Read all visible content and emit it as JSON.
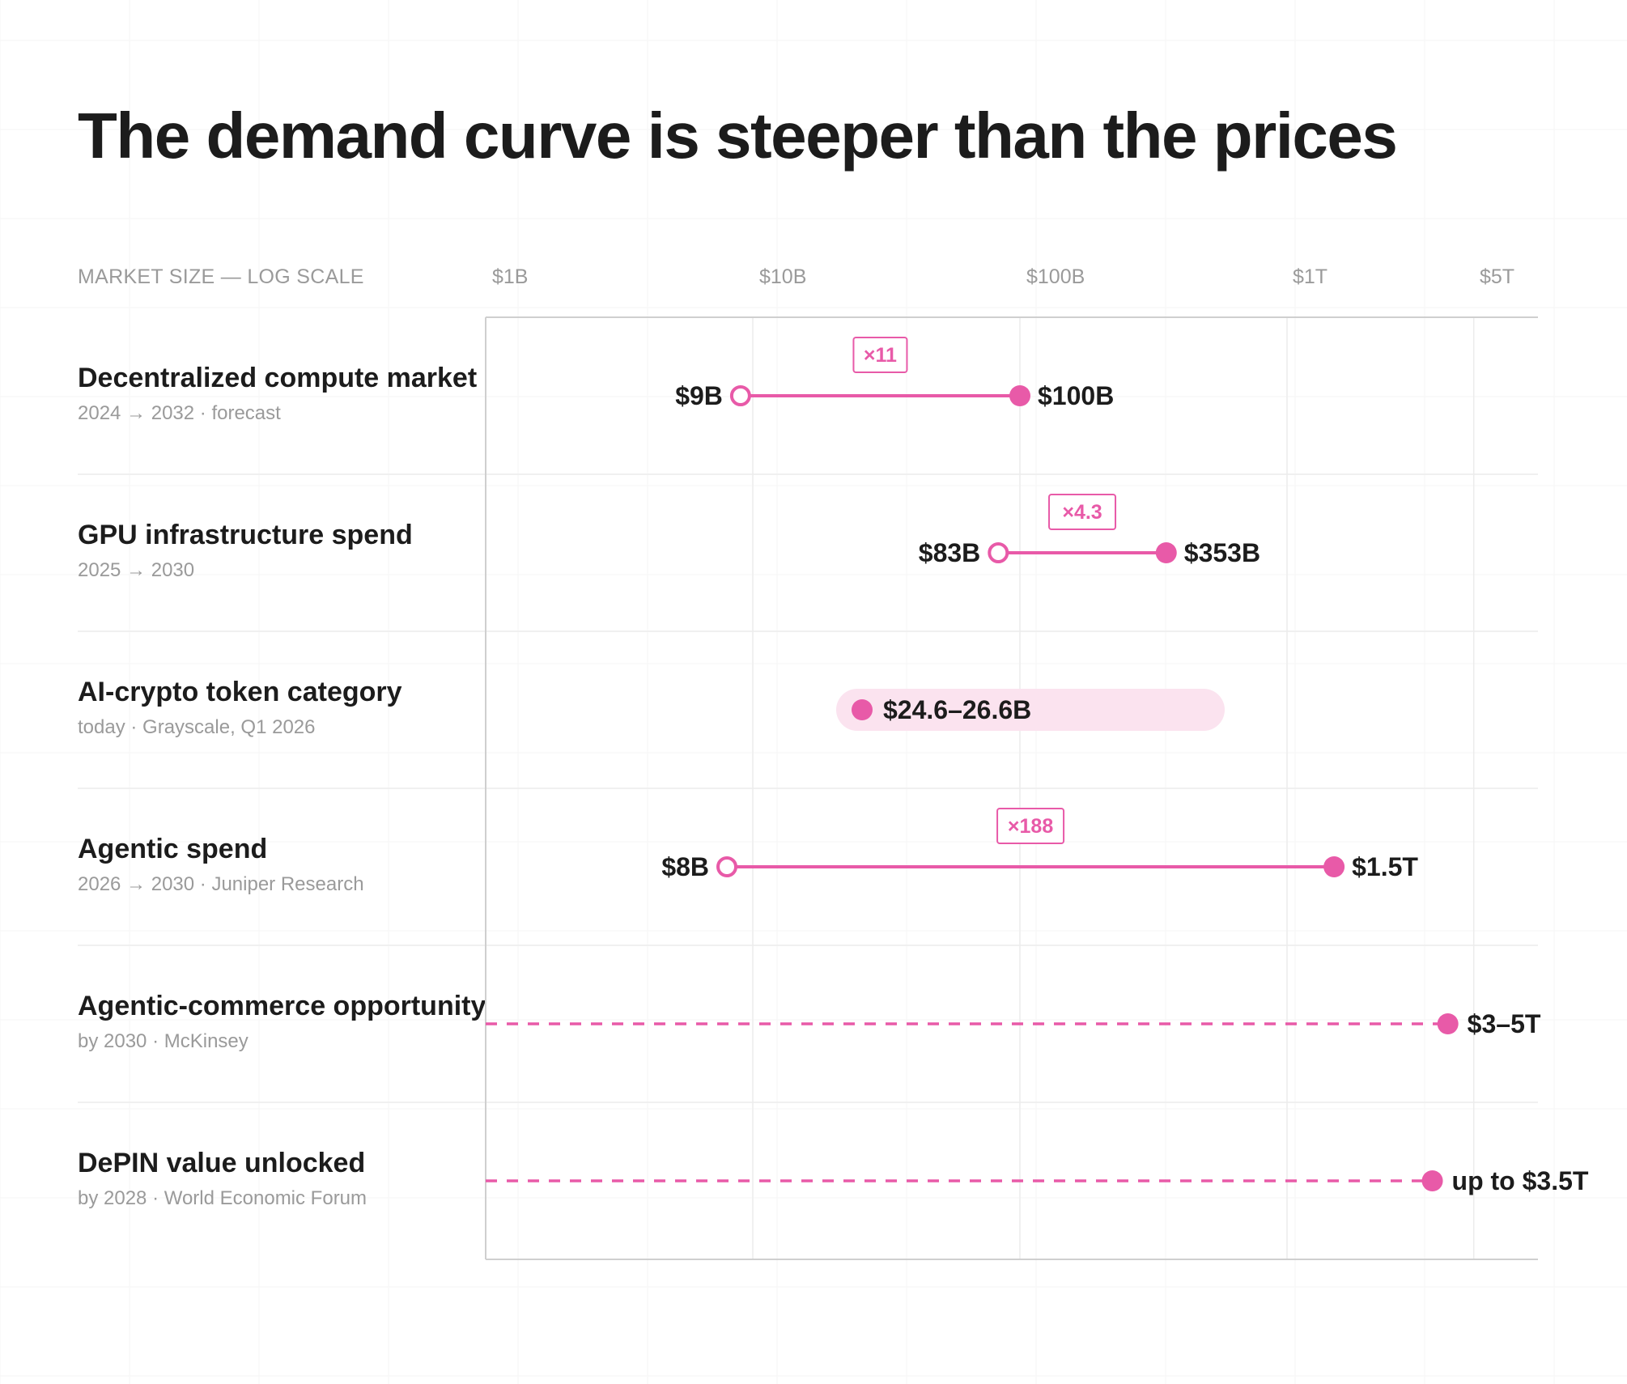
{
  "title": "The demand curve is steeper than the prices",
  "axis_caption": "MARKET SIZE — LOG SCALE",
  "colors": {
    "accent": "#e85aa8",
    "band": "#fbe3ef",
    "text": "#1c1c1c",
    "muted": "#9a9a9a",
    "grid": "#ececec",
    "axis": "#cfcfcf"
  },
  "chart_data": {
    "type": "dumbbell",
    "title": "The demand curve is steeper than the prices",
    "xlabel": "MARKET SIZE — LOG SCALE",
    "x_scale": "log",
    "x_unit": "USD billions",
    "xlim": [
      1,
      5000
    ],
    "ticks": [
      {
        "value": 1,
        "label": "$1B"
      },
      {
        "value": 10,
        "label": "$10B"
      },
      {
        "value": 100,
        "label": "$100B"
      },
      {
        "value": 1000,
        "label": "$1T"
      },
      {
        "value": 5000,
        "label": "$5T"
      }
    ],
    "grid": true,
    "rows": [
      {
        "name": "Decentralized compute market",
        "sub": "2024 → 2032 · forecast",
        "kind": "range",
        "from": 9,
        "from_label": "$9B",
        "to": 100,
        "to_label": "$100B",
        "multiplier": "×11"
      },
      {
        "name": "GPU infrastructure spend",
        "sub": "2025 → 2030",
        "kind": "range",
        "from": 83,
        "from_label": "$83B",
        "to": 353,
        "to_label": "$353B",
        "multiplier": "×4.3"
      },
      {
        "name": "AI-crypto token category",
        "sub": "today · Grayscale, Q1 2026",
        "kind": "band",
        "low": 24.6,
        "high": 26.6,
        "label": "$24.6–26.6B"
      },
      {
        "name": "Agentic spend",
        "sub": "2026 → 2030 · Juniper Research",
        "kind": "range",
        "from": 8,
        "from_label": "$8B",
        "to": 1500,
        "to_label": "$1.5T",
        "multiplier": "×188"
      },
      {
        "name": "Agentic-commerce opportunity",
        "sub": "by 2030 · McKinsey",
        "kind": "target",
        "value": 4000,
        "label": "$3–5T"
      },
      {
        "name": "DePIN value unlocked",
        "sub": "by 2028 · World Economic Forum",
        "kind": "target",
        "value": 3500,
        "label": "up to $3.5T"
      }
    ]
  }
}
